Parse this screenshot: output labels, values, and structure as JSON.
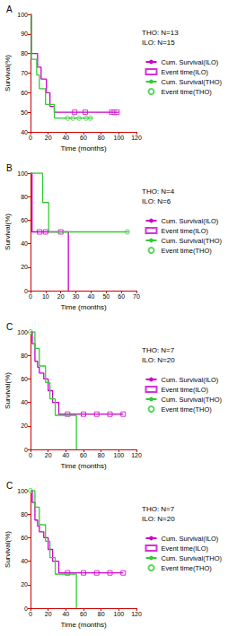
{
  "chart_data": [
    {
      "type": "line",
      "title": "A",
      "x_label": "Time (months)",
      "y_label": "Survival(%)",
      "annotations": [
        "THO: N=13",
        "ILO: N=15"
      ],
      "xlim": [
        0,
        120
      ],
      "xticks": [
        0,
        20,
        40,
        60,
        80,
        100,
        120
      ],
      "ylim": [
        40,
        100
      ],
      "yticks": [
        40,
        50,
        60,
        70,
        80,
        90,
        100
      ],
      "series": [
        {
          "name": "Cum. Survival(ILO)",
          "type": "line",
          "line_style": "step",
          "color": "#cc00cc",
          "x": [
            0,
            1,
            8,
            12,
            18,
            22,
            27,
            100
          ],
          "values": [
            100,
            80,
            73,
            67,
            60,
            53,
            50,
            50
          ]
        },
        {
          "name": "Event time(ILO)",
          "type": "scatter",
          "marker": "square",
          "color": "#cc00cc",
          "x": [
            50,
            62,
            92,
            95,
            98
          ],
          "values": [
            50,
            50,
            50,
            50,
            50
          ]
        },
        {
          "name": "Cum. Survival(THO)",
          "type": "line",
          "line_style": "step",
          "color": "#33cc33",
          "x": [
            0,
            1,
            7,
            10,
            17,
            27,
            70
          ],
          "values": [
            100,
            77,
            69,
            62,
            54,
            47,
            47
          ]
        },
        {
          "name": "Event time(THO)",
          "type": "scatter",
          "marker": "circle",
          "color": "#33cc33",
          "x": [
            42,
            48,
            55,
            63,
            68
          ],
          "values": [
            47,
            47,
            47,
            47,
            47
          ]
        }
      ]
    },
    {
      "type": "line",
      "title": "B",
      "x_label": "Time (months)",
      "y_label": "Survival(%)",
      "annotations": [
        "THO: N=4",
        "ILO: N=6"
      ],
      "xlim": [
        0,
        70
      ],
      "xticks": [
        0,
        10,
        20,
        30,
        40,
        50,
        60,
        70
      ],
      "ylim": [
        0,
        100
      ],
      "yticks": [
        0,
        20,
        40,
        60,
        80,
        100
      ],
      "series": [
        {
          "name": "Cum. Survival(ILO)",
          "type": "line",
          "line_style": "step",
          "color": "#cc00cc",
          "x": [
            0,
            1,
            25
          ],
          "values": [
            100,
            50,
            0
          ]
        },
        {
          "name": "Event time(ILO)",
          "type": "scatter",
          "marker": "square",
          "color": "#cc00cc",
          "x": [
            6,
            10,
            20
          ],
          "values": [
            50,
            50,
            50
          ]
        },
        {
          "name": "Cum. Survival(THO)",
          "type": "line",
          "line_style": "step",
          "color": "#33cc33",
          "x": [
            0,
            8,
            12,
            65
          ],
          "values": [
            100,
            75,
            50,
            50
          ]
        },
        {
          "name": "Event time(THO)",
          "type": "scatter",
          "marker": "circle",
          "color": "#33cc33",
          "x": [
            64
          ],
          "values": [
            50
          ]
        }
      ]
    },
    {
      "type": "line",
      "title": "C",
      "x_label": "Time (months)",
      "y_label": "Survival(%)",
      "annotations": [
        "THO: N=7",
        "ILO: N=20"
      ],
      "xlim": [
        0,
        120
      ],
      "xticks": [
        0,
        20,
        40,
        60,
        80,
        100,
        120
      ],
      "ylim": [
        0,
        100
      ],
      "yticks": [
        0,
        20,
        40,
        60,
        80,
        100
      ],
      "series": [
        {
          "name": "Cum. Survival(ILO)",
          "type": "line",
          "line_style": "step",
          "color": "#cc00cc",
          "x": [
            0,
            2,
            5,
            8,
            10,
            15,
            20,
            25,
            32,
            105
          ],
          "values": [
            100,
            90,
            75,
            70,
            65,
            60,
            50,
            40,
            30,
            30
          ]
        },
        {
          "name": "Event time(ILO)",
          "type": "scatter",
          "marker": "square",
          "color": "#cc00cc",
          "x": [
            42,
            60,
            75,
            90,
            105
          ],
          "values": [
            30,
            30,
            30,
            30,
            30
          ]
        },
        {
          "name": "Cum. Survival(THO)",
          "type": "line",
          "line_style": "step",
          "color": "#33cc33",
          "x": [
            0,
            5,
            10,
            17,
            22,
            28,
            52
          ],
          "values": [
            100,
            86,
            71,
            57,
            43,
            29,
            0
          ]
        },
        {
          "name": "Event time(THO)",
          "type": "scatter",
          "marker": "circle",
          "color": "#33cc33",
          "x": [
            0
          ],
          "values": [
            100
          ]
        }
      ]
    },
    {
      "type": "line",
      "title": "C",
      "x_label": "Time (months)",
      "y_label": "Survival(%)",
      "annotations": [
        "THO: N=7",
        "ILO: N=20"
      ],
      "xlim": [
        0,
        120
      ],
      "xticks": [
        0,
        20,
        40,
        60,
        80,
        100,
        120
      ],
      "ylim": [
        0,
        100
      ],
      "yticks": [
        0,
        20,
        40,
        60,
        80,
        100
      ],
      "series": [
        {
          "name": "Cum. Survival(ILO)",
          "type": "line",
          "line_style": "step",
          "color": "#cc00cc",
          "x": [
            0,
            2,
            5,
            8,
            10,
            15,
            20,
            25,
            32,
            105
          ],
          "values": [
            100,
            90,
            75,
            70,
            65,
            60,
            50,
            40,
            30,
            30
          ]
        },
        {
          "name": "Event time(ILO)",
          "type": "scatter",
          "marker": "square",
          "color": "#cc00cc",
          "x": [
            42,
            60,
            75,
            90,
            105
          ],
          "values": [
            30,
            30,
            30,
            30,
            30
          ]
        },
        {
          "name": "Cum. Survival(THO)",
          "type": "line",
          "line_style": "step",
          "color": "#33cc33",
          "x": [
            0,
            5,
            10,
            17,
            22,
            28,
            52
          ],
          "values": [
            100,
            86,
            71,
            57,
            43,
            29,
            0
          ]
        },
        {
          "name": "Event time(THO)",
          "type": "scatter",
          "marker": "circle",
          "color": "#33cc33",
          "x": [
            0
          ],
          "values": [
            100
          ]
        }
      ]
    }
  ]
}
